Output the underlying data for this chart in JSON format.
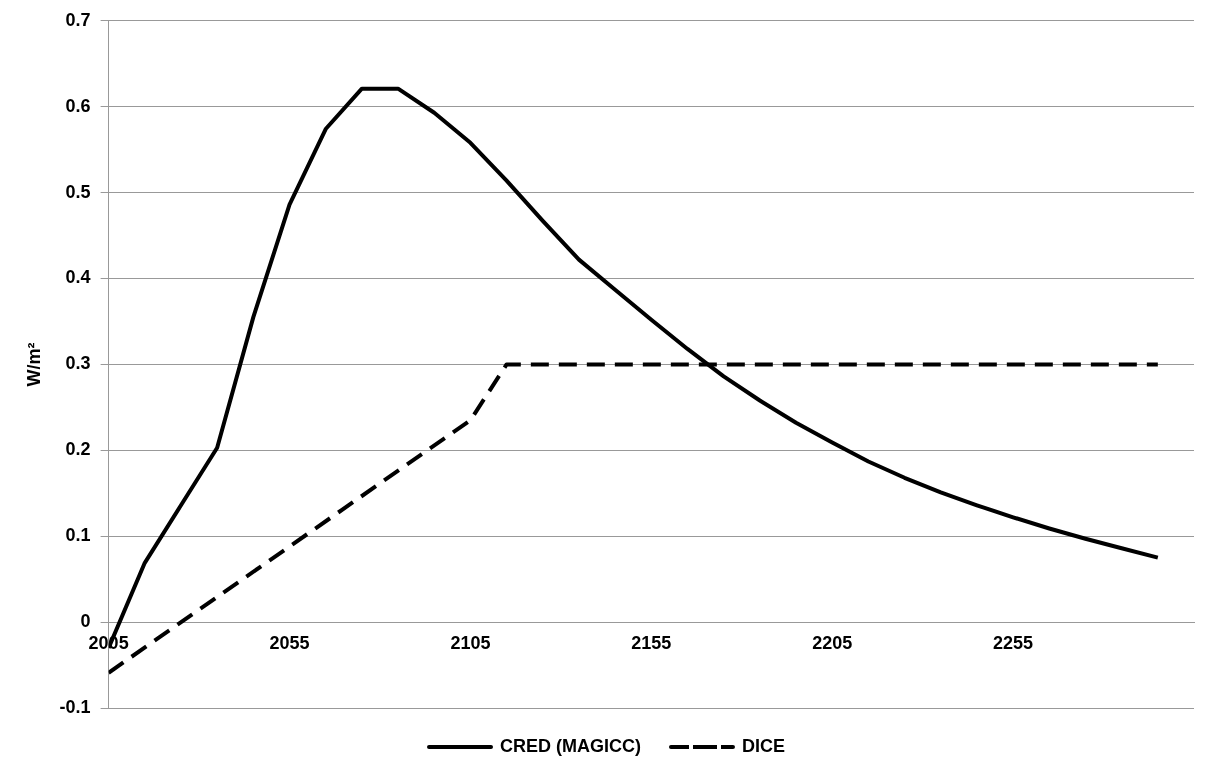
{
  "chart_data": {
    "type": "line",
    "ylabel": "W/m²",
    "xlim": [
      2005,
      2305
    ],
    "xticks": [
      2005,
      2055,
      2105,
      2155,
      2205,
      2255
    ],
    "ylim": [
      -0.1,
      0.7
    ],
    "yticks": [
      -0.1,
      0,
      0.1,
      0.2,
      0.3,
      0.4,
      0.5,
      0.6,
      0.7
    ],
    "grid": "y",
    "legend": "bottom",
    "marker": "none",
    "series": [
      {
        "name": "CRED (MAGICC)",
        "color": "#000000",
        "line_style": "solid",
        "x": [
          2005,
          2015,
          2025,
          2035,
          2045,
          2055,
          2065,
          2075,
          2085,
          2095,
          2105,
          2115,
          2125,
          2135,
          2145,
          2155,
          2165,
          2175,
          2185,
          2195,
          2205,
          2215,
          2225,
          2235,
          2245,
          2255,
          2265,
          2275,
          2285,
          2295
        ],
        "values": [
          -0.03,
          0.069,
          0.136,
          0.203,
          0.355,
          0.486,
          0.574,
          0.621,
          0.621,
          0.593,
          0.558,
          0.514,
          0.467,
          0.422,
          0.387,
          0.352,
          0.318,
          0.286,
          0.258,
          0.232,
          0.209,
          0.187,
          0.168,
          0.151,
          0.136,
          0.122,
          0.109,
          0.097,
          0.086,
          0.075
        ]
      },
      {
        "name": "DICE",
        "color": "#000000",
        "line_style": "dashed",
        "x": [
          2005,
          2105,
          2115,
          2295
        ],
        "values": [
          -0.059,
          0.235,
          0.3,
          0.3
        ]
      }
    ]
  }
}
